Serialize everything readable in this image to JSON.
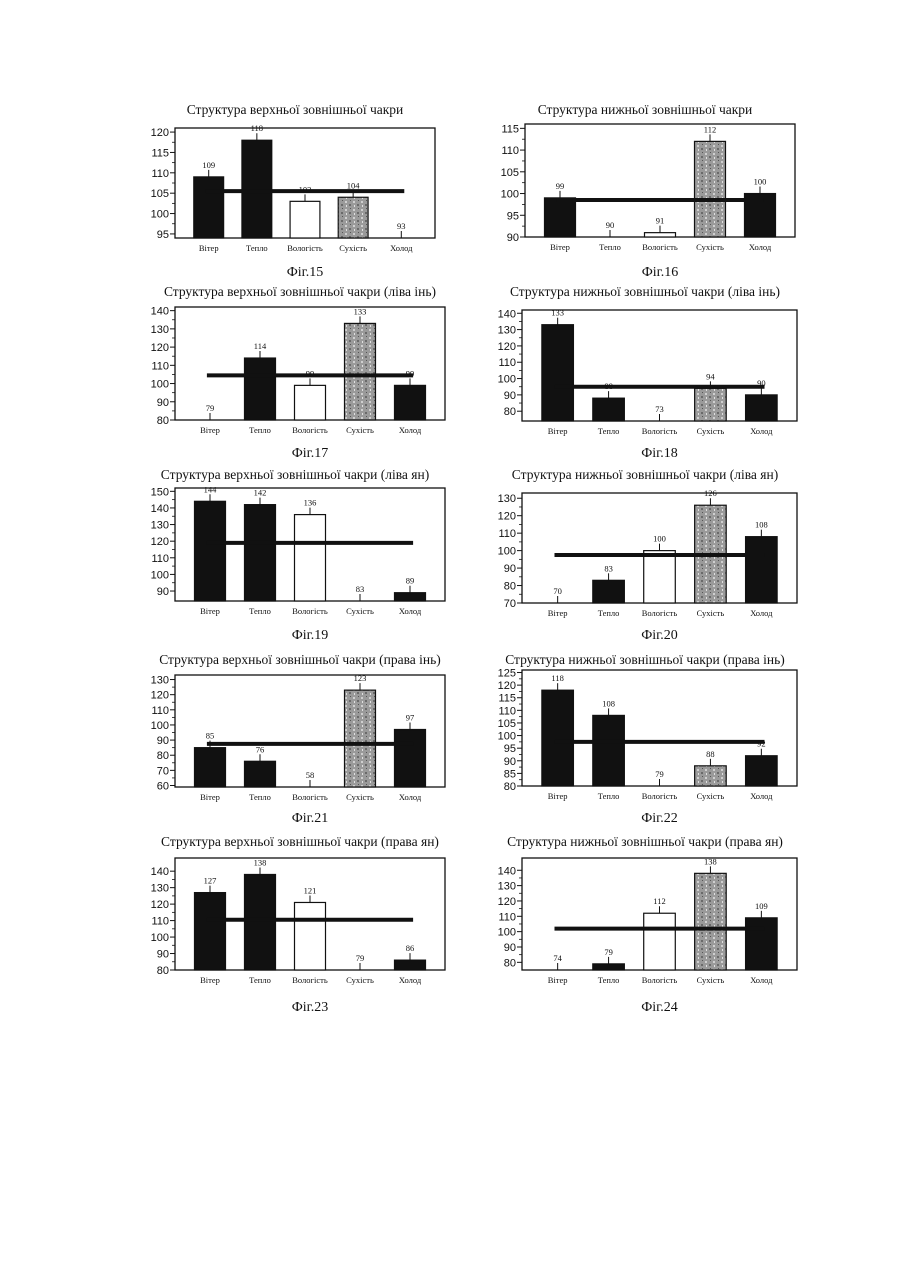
{
  "chart_data": [
    {
      "id": "fig15",
      "type": "bar",
      "title": "Структура верхньої зовнішньої чакри",
      "caption": "Фіг.15",
      "categories": [
        "Вітер",
        "Тепло",
        "Вологість",
        "Сухість",
        "Холод"
      ],
      "values": [
        109,
        118,
        103,
        104,
        93
      ],
      "fills": [
        "black",
        "black",
        "white",
        "gray",
        "black"
      ],
      "reference_line": 105.5,
      "ylim": [
        94,
        121
      ],
      "yticks": [
        95,
        100,
        105,
        110,
        115,
        120
      ]
    },
    {
      "id": "fig16",
      "type": "bar",
      "title": "Структура нижньої зовнішньої чакри",
      "caption": "Фіг.16",
      "categories": [
        "Вітер",
        "Тепло",
        "Вологість",
        "Сухість",
        "Холод"
      ],
      "values": [
        99,
        90,
        91,
        112,
        100
      ],
      "fills": [
        "black",
        "black",
        "white",
        "gray",
        "black"
      ],
      "reference_line": 98.5,
      "ylim": [
        90,
        116
      ],
      "yticks": [
        90,
        95,
        100,
        105,
        110,
        115
      ]
    },
    {
      "id": "fig17",
      "type": "bar",
      "title": "Структура верхньої зовнішньої чакри (ліва інь)",
      "caption": "Фіг.17",
      "categories": [
        "Вітер",
        "Тепло",
        "Вологість",
        "Сухість",
        "Холод"
      ],
      "values": [
        79,
        114,
        99,
        133,
        99
      ],
      "fills": [
        "black",
        "black",
        "white",
        "gray",
        "black"
      ],
      "reference_line": 104.5,
      "ylim": [
        80,
        142
      ],
      "yticks": [
        80,
        90,
        100,
        110,
        120,
        130,
        140
      ]
    },
    {
      "id": "fig18",
      "type": "bar",
      "title": "Структура нижньої зовнішньої чакри (ліва інь)",
      "caption": "Фіг.18",
      "categories": [
        "Вітер",
        "Тепло",
        "Вологість",
        "Сухість",
        "Холод"
      ],
      "values": [
        133,
        88,
        73,
        94,
        90
      ],
      "fills": [
        "black",
        "black",
        "white",
        "gray",
        "black"
      ],
      "reference_line": 95,
      "ylim": [
        74,
        142
      ],
      "yticks": [
        80,
        90,
        100,
        110,
        120,
        130,
        140
      ]
    },
    {
      "id": "fig19",
      "type": "bar",
      "title": "Структура верхньої зовнішньої чакри (ліва ян)",
      "caption": "Фіг.19",
      "categories": [
        "Вітер",
        "Тепло",
        "Вологість",
        "Сухість",
        "Холод"
      ],
      "values": [
        144,
        142,
        136,
        83,
        89
      ],
      "fills": [
        "black",
        "black",
        "white",
        "gray",
        "black"
      ],
      "reference_line": 119,
      "ylim": [
        84,
        152
      ],
      "yticks": [
        90,
        100,
        110,
        120,
        130,
        140,
        150
      ]
    },
    {
      "id": "fig20",
      "type": "bar",
      "title": "Структура нижньої зовнішньої чакри (ліва ян)",
      "caption": "Фіг.20",
      "categories": [
        "Вітер",
        "Тепло",
        "Вологість",
        "Сухість",
        "Холод"
      ],
      "values": [
        70,
        83,
        100,
        126,
        108
      ],
      "fills": [
        "black",
        "black",
        "white",
        "gray",
        "black"
      ],
      "reference_line": 97.5,
      "ylim": [
        70,
        133
      ],
      "yticks": [
        70,
        80,
        90,
        100,
        110,
        120,
        130
      ]
    },
    {
      "id": "fig21",
      "type": "bar",
      "title": "Структура верхньої зовнішньої чакри (права інь)",
      "caption": "Фіг.21",
      "categories": [
        "Вітер",
        "Тепло",
        "Вологість",
        "Сухість",
        "Холод"
      ],
      "values": [
        85,
        76,
        58,
        123,
        97
      ],
      "fills": [
        "black",
        "black",
        "white",
        "gray",
        "black"
      ],
      "reference_line": 87.5,
      "ylim": [
        59,
        133
      ],
      "yticks": [
        60,
        70,
        80,
        90,
        100,
        110,
        120,
        130
      ]
    },
    {
      "id": "fig22",
      "type": "bar",
      "title": "Структура нижньої зовнішньої чакри (права інь)",
      "caption": "Фіг.22",
      "categories": [
        "Вітер",
        "Тепло",
        "Вологість",
        "Сухість",
        "Холод"
      ],
      "values": [
        118,
        108,
        79,
        88,
        92
      ],
      "fills": [
        "black",
        "black",
        "white",
        "gray",
        "black"
      ],
      "reference_line": 97.5,
      "ylim": [
        80,
        126
      ],
      "yticks": [
        80,
        85,
        90,
        95,
        100,
        105,
        110,
        115,
        120,
        125
      ]
    },
    {
      "id": "fig23",
      "type": "bar",
      "title": "Структура верхньої зовнішньої чакри (права ян)",
      "caption": "Фіг.23",
      "categories": [
        "Вітер",
        "Тепло",
        "Вологість",
        "Сухість",
        "Холод"
      ],
      "values": [
        127,
        138,
        121,
        79,
        86
      ],
      "fills": [
        "black",
        "black",
        "white",
        "gray",
        "black"
      ],
      "reference_line": 110.5,
      "ylim": [
        80,
        148
      ],
      "yticks": [
        80,
        90,
        100,
        110,
        120,
        130,
        140
      ]
    },
    {
      "id": "fig24",
      "type": "bar",
      "title": "Структура нижньої зовнішньої чакри (права ян)",
      "caption": "Фіг.24",
      "categories": [
        "Вітер",
        "Тепло",
        "Вологість",
        "Сухість",
        "Холод"
      ],
      "values": [
        74,
        79,
        112,
        138,
        109
      ],
      "fills": [
        "black",
        "black",
        "white",
        "gray",
        "black"
      ],
      "reference_line": 102,
      "ylim": [
        75,
        148
      ],
      "yticks": [
        80,
        90,
        100,
        110,
        120,
        130,
        140
      ]
    }
  ],
  "colors": {
    "black": "#111111",
    "white": "#ffffff",
    "gray": "#9a9a9a",
    "line": "#111111"
  }
}
